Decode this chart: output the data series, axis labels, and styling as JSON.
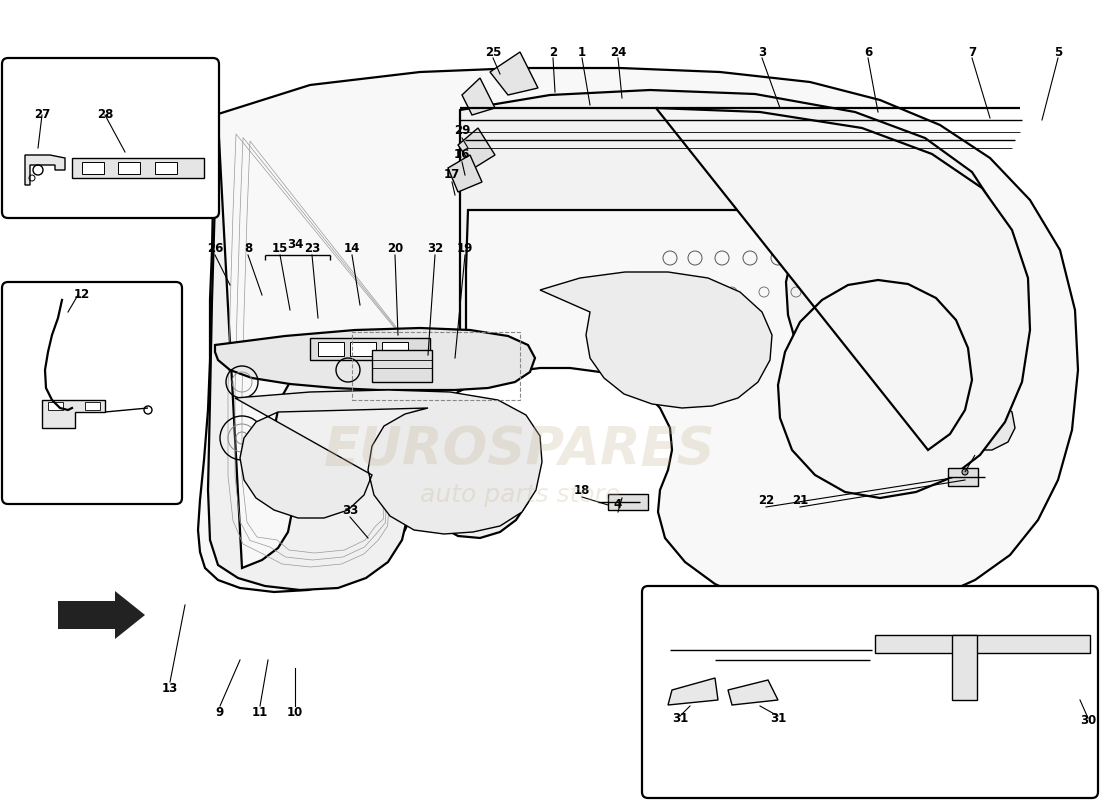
{
  "fig_width": 11.0,
  "fig_height": 8.0,
  "dpi": 100,
  "background_color": "#ffffff",
  "line_color": "#000000",
  "watermark_color": "#c8b898",
  "watermark_alpha": 0.28,
  "lw": 1.0,
  "lw_thick": 1.6,
  "label_fontsize": 8.5,
  "label_fontweight": "bold"
}
